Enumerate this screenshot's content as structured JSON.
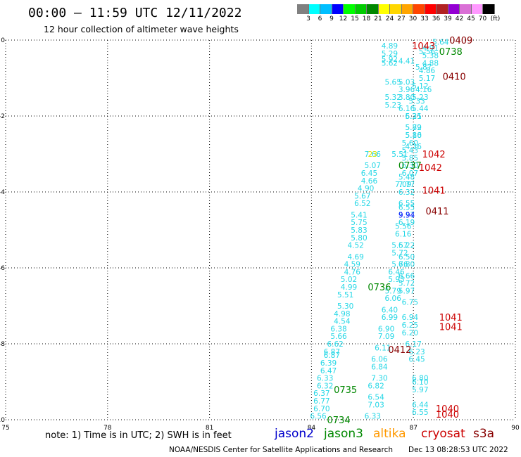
{
  "header": {
    "title": "00:00 – 11:59 UTC 12/11/2022",
    "subtitle": "12 hour collection of altimeter wave heights"
  },
  "colorbar": {
    "unit": "(ft)",
    "bins": [
      {
        "label": "3",
        "color": "#808080"
      },
      {
        "label": "6",
        "color": "#00ffff"
      },
      {
        "label": "9",
        "color": "#00bfff"
      },
      {
        "label": "12",
        "color": "#0000ff"
      },
      {
        "label": "15",
        "color": "#00ff00"
      },
      {
        "label": "18",
        "color": "#00cc00"
      },
      {
        "label": "21",
        "color": "#008800"
      },
      {
        "label": "24",
        "color": "#ffff00"
      },
      {
        "label": "27",
        "color": "#ffd700"
      },
      {
        "label": "30",
        "color": "#ffa500"
      },
      {
        "label": "33",
        "color": "#ff4500"
      },
      {
        "label": "36",
        "color": "#ff0000"
      },
      {
        "label": "39",
        "color": "#b22222"
      },
      {
        "label": "42",
        "color": "#9400d3"
      },
      {
        "label": "45",
        "color": "#da70d6"
      },
      {
        "label": "70",
        "color": "#ff99ff"
      },
      {
        "label": "",
        "color": "#000000"
      }
    ]
  },
  "colors": {
    "cyan": "#25d7e6",
    "jason2": "#0000cc",
    "jason3": "#008800",
    "altika": "#ff9900",
    "cryosat": "#cc0000",
    "s3a": "#880000",
    "yellow": "#e6e600",
    "blue": "#0000ff"
  },
  "chart_data": {
    "type": "scatter",
    "title": "00:00 – 11:59 UTC 12/11/2022",
    "subtitle": "12 hour collection of altimeter wave heights",
    "xlim": [
      75,
      90
    ],
    "ylim": [
      -10,
      0
    ],
    "x_ticks": [
      "75",
      "78",
      "81",
      "84",
      "87",
      "90"
    ],
    "y_ticks": [
      "0",
      "-2",
      "-4",
      "-6",
      "-8",
      "-10"
    ],
    "grid": true,
    "series": [
      {
        "name": "jason2",
        "color_key": "cyan",
        "points": [
          {
            "x": 84.2,
            "y": -9.9,
            "label": "6.56"
          },
          {
            "x": 84.3,
            "y": -9.7,
            "label": "6.70"
          },
          {
            "x": 84.3,
            "y": -9.5,
            "label": "6.77"
          },
          {
            "x": 84.3,
            "y": -9.3,
            "label": "6.37"
          },
          {
            "x": 84.4,
            "y": -9.1,
            "label": "6.32"
          },
          {
            "x": 84.4,
            "y": -8.9,
            "label": "6.33"
          },
          {
            "x": 84.5,
            "y": -8.7,
            "label": "6.47"
          },
          {
            "x": 84.5,
            "y": -8.5,
            "label": "6.39"
          },
          {
            "x": 84.6,
            "y": -8.3,
            "label": "6.87"
          },
          {
            "x": 84.6,
            "y": -8.2,
            "label": "6.87"
          },
          {
            "x": 84.7,
            "y": -8.0,
            "label": "6.62"
          },
          {
            "x": 84.8,
            "y": -7.8,
            "label": "5.66"
          },
          {
            "x": 84.8,
            "y": -7.6,
            "label": "6.38"
          },
          {
            "x": 84.9,
            "y": -7.4,
            "label": "4.54"
          },
          {
            "x": 84.9,
            "y": -7.2,
            "label": "4.98"
          },
          {
            "x": 85.0,
            "y": -7.0,
            "label": "5.30"
          },
          {
            "x": 85.0,
            "y": -6.7,
            "label": "5.51"
          },
          {
            "x": 85.1,
            "y": -6.5,
            "label": "4.99"
          },
          {
            "x": 85.1,
            "y": -6.3,
            "label": "5.02"
          },
          {
            "x": 85.2,
            "y": -6.1,
            "label": "4.76"
          },
          {
            "x": 85.2,
            "y": -5.9,
            "label": "4.59"
          },
          {
            "x": 85.3,
            "y": -5.7,
            "label": "4.69"
          },
          {
            "x": 85.3,
            "y": -5.4,
            "label": "4.52"
          },
          {
            "x": 85.4,
            "y": -5.2,
            "label": "5.80"
          },
          {
            "x": 85.4,
            "y": -5.0,
            "label": "5.83"
          },
          {
            "x": 85.4,
            "y": -4.8,
            "label": "5.75"
          },
          {
            "x": 85.4,
            "y": -4.6,
            "label": "5.41"
          },
          {
            "x": 85.5,
            "y": -4.3,
            "label": "6.52"
          },
          {
            "x": 85.5,
            "y": -4.1,
            "label": "5.67"
          },
          {
            "x": 85.6,
            "y": -3.9,
            "label": "4.90"
          },
          {
            "x": 85.7,
            "y": -3.7,
            "label": "4.66"
          },
          {
            "x": 85.7,
            "y": -3.5,
            "label": "6.45"
          },
          {
            "x": 85.8,
            "y": -3.3,
            "label": "5.07"
          },
          {
            "x": 85.8,
            "y": -3.0,
            "label": "7.66"
          }
        ]
      },
      {
        "name": "jason3",
        "color_key": "cyan",
        "points": [
          {
            "x": 85.8,
            "y": -9.9,
            "label": "6.33"
          },
          {
            "x": 85.9,
            "y": -9.6,
            "label": "7.03"
          },
          {
            "x": 85.9,
            "y": -9.4,
            "label": "6.54"
          },
          {
            "x": 85.9,
            "y": -9.1,
            "label": "6.82"
          },
          {
            "x": 86.0,
            "y": -8.9,
            "label": "7.30"
          },
          {
            "x": 86.0,
            "y": -8.6,
            "label": "6.84"
          },
          {
            "x": 86.0,
            "y": -8.4,
            "label": "6.06"
          },
          {
            "x": 86.1,
            "y": -8.1,
            "label": "6.11"
          },
          {
            "x": 86.2,
            "y": -7.8,
            "label": "7.09"
          },
          {
            "x": 86.2,
            "y": -7.6,
            "label": "6.90"
          },
          {
            "x": 86.3,
            "y": -7.3,
            "label": "6.99"
          },
          {
            "x": 86.3,
            "y": -7.1,
            "label": "6.40"
          },
          {
            "x": 86.4,
            "y": -6.8,
            "label": "6.06"
          },
          {
            "x": 86.4,
            "y": -6.6,
            "label": "5.79"
          },
          {
            "x": 86.5,
            "y": -6.3,
            "label": "5.93"
          },
          {
            "x": 86.5,
            "y": -6.1,
            "label": "6.46"
          },
          {
            "x": 86.6,
            "y": -5.9,
            "label": "5.76"
          },
          {
            "x": 86.6,
            "y": -5.6,
            "label": "5.72"
          },
          {
            "x": 86.6,
            "y": -5.4,
            "label": "5.57"
          },
          {
            "x": 86.7,
            "y": -5.1,
            "label": "6.16"
          },
          {
            "x": 86.7,
            "y": -4.9,
            "label": "5.56"
          },
          {
            "x": 86.8,
            "y": -4.6,
            "label": "5.57"
          },
          {
            "x": 86.8,
            "y": -4.3,
            "label": "6.55"
          },
          {
            "x": 86.8,
            "y": -3.8,
            "label": "7.77"
          },
          {
            "x": 86.8,
            "y": -3.6,
            "label": "5.48"
          },
          {
            "x": 86.9,
            "y": -3.1,
            "label": "5.85"
          },
          {
            "x": 86.9,
            "y": -2.9,
            "label": "5.43"
          },
          {
            "x": 86.9,
            "y": -2.7,
            "label": "5.60"
          },
          {
            "x": 87.0,
            "y": -2.5,
            "label": "5.86"
          },
          {
            "x": 87.0,
            "y": -2.3,
            "label": "5.89"
          },
          {
            "x": 87.0,
            "y": -2.0,
            "label": "6.35"
          },
          {
            "x": 87.1,
            "y": -1.6,
            "label": "5.33"
          },
          {
            "x": 87.2,
            "y": -1.2,
            "label": "5.12"
          },
          {
            "x": 87.3,
            "y": -0.7,
            "label": "5.87"
          },
          {
            "x": 87.4,
            "y": -0.3,
            "label": "5.56"
          }
        ]
      },
      {
        "name": "altika",
        "color_key": "cyan",
        "points": [
          {
            "x": 86.3,
            "y": -0.15,
            "label": "4.89"
          },
          {
            "x": 86.3,
            "y": -0.35,
            "label": "5.29"
          },
          {
            "x": 86.3,
            "y": -0.5,
            "label": "5.92"
          },
          {
            "x": 86.3,
            "y": -0.6,
            "label": "5.62"
          },
          {
            "x": 86.4,
            "y": -1.1,
            "label": "5.65"
          },
          {
            "x": 86.4,
            "y": -1.5,
            "label": "5.32"
          },
          {
            "x": 86.4,
            "y": -1.7,
            "label": "5.23"
          }
        ]
      },
      {
        "name": "cryosat",
        "color_key": "cyan",
        "points": [
          {
            "x": 87.2,
            "y": -9.8,
            "label": "6.55"
          },
          {
            "x": 87.2,
            "y": -9.6,
            "label": "6.44"
          },
          {
            "x": 87.2,
            "y": -9.2,
            "label": "5.97"
          },
          {
            "x": 87.2,
            "y": -9.0,
            "label": "6.10"
          },
          {
            "x": 87.2,
            "y": -8.9,
            "label": "6.80"
          },
          {
            "x": 87.1,
            "y": -8.4,
            "label": "6.45"
          },
          {
            "x": 87.1,
            "y": -8.2,
            "label": "6.23"
          },
          {
            "x": 87.0,
            "y": -8.0,
            "label": "6.17"
          },
          {
            "x": 86.9,
            "y": -7.7,
            "label": "6.20"
          },
          {
            "x": 86.9,
            "y": -7.5,
            "label": "6.25"
          },
          {
            "x": 86.9,
            "y": -7.3,
            "label": "6.94"
          },
          {
            "x": 86.9,
            "y": -6.9,
            "label": "6.75"
          },
          {
            "x": 86.8,
            "y": -6.6,
            "label": "5.97"
          },
          {
            "x": 86.8,
            "y": -6.4,
            "label": "5.72"
          },
          {
            "x": 86.8,
            "y": -6.2,
            "label": "6.66"
          },
          {
            "x": 86.8,
            "y": -5.9,
            "label": "6.80"
          },
          {
            "x": 86.8,
            "y": -5.7,
            "label": "6.50"
          },
          {
            "x": 86.8,
            "y": -5.4,
            "label": "6.22"
          },
          {
            "x": 86.8,
            "y": -4.8,
            "label": "6.19"
          },
          {
            "x": 86.8,
            "y": -4.4,
            "label": "6.55"
          },
          {
            "x": 86.8,
            "y": -4.0,
            "label": "6.32"
          },
          {
            "x": 86.9,
            "y": -3.5,
            "label": "6.07"
          },
          {
            "x": 86.9,
            "y": -3.3,
            "label": "6.30"
          },
          {
            "x": 87.0,
            "y": -2.8,
            "label": "4.36"
          },
          {
            "x": 87.0,
            "y": -2.5,
            "label": "5.10"
          },
          {
            "x": 87.0,
            "y": -2.3,
            "label": "5.72"
          },
          {
            "x": 87.0,
            "y": -2.0,
            "label": "5.21"
          },
          {
            "x": 87.2,
            "y": -1.8,
            "label": "5.44"
          },
          {
            "x": 87.2,
            "y": -1.5,
            "label": "5.23"
          },
          {
            "x": 87.3,
            "y": -1.3,
            "label": "4.16"
          },
          {
            "x": 87.4,
            "y": -1.0,
            "label": "5.17"
          },
          {
            "x": 87.4,
            "y": -0.8,
            "label": "4.86"
          },
          {
            "x": 87.5,
            "y": -0.6,
            "label": "4.88"
          },
          {
            "x": 87.5,
            "y": -0.4,
            "label": "5.38"
          },
          {
            "x": 87.5,
            "y": -0.2,
            "label": "4.91"
          },
          {
            "x": 87.8,
            "y": -0.05,
            "label": "5.64"
          }
        ]
      },
      {
        "name": "s3a",
        "color_key": "cyan",
        "points": [
          {
            "x": 86.8,
            "y": -0.55,
            "label": "4.41"
          },
          {
            "x": 86.8,
            "y": -1.1,
            "label": "5.03"
          },
          {
            "x": 86.8,
            "y": -1.3,
            "label": "3.96"
          },
          {
            "x": 86.8,
            "y": -1.5,
            "label": "3.80"
          },
          {
            "x": 86.8,
            "y": -1.8,
            "label": "6.16"
          },
          {
            "x": 86.6,
            "y": -3.0,
            "label": "5.51"
          },
          {
            "x": 86.7,
            "y": -3.8,
            "label": "7.09"
          }
        ]
      },
      {
        "name": "other",
        "color_key": "yellow",
        "points": [
          {
            "x": 85.8,
            "y": -3.0,
            "label": "23"
          }
        ]
      },
      {
        "name": "other-blue",
        "color_key": "blue",
        "points": [
          {
            "x": 86.8,
            "y": -4.6,
            "label": "9.94"
          }
        ]
      }
    ],
    "pass_labels": [
      {
        "text": "0409",
        "color_key": "s3a",
        "x": 88.4,
        "y": 0.0
      },
      {
        "text": "1043",
        "color_key": "cryosat",
        "x": 87.3,
        "y": -0.15
      },
      {
        "text": "0738",
        "color_key": "jason3",
        "x": 88.1,
        "y": -0.3
      },
      {
        "text": "0410",
        "color_key": "s3a",
        "x": 88.2,
        "y": -0.95
      },
      {
        "text": "1042",
        "color_key": "cryosat",
        "x": 87.6,
        "y": -3.0
      },
      {
        "text": "0737",
        "color_key": "jason3",
        "x": 86.9,
        "y": -3.3
      },
      {
        "text": "1042",
        "color_key": "cryosat",
        "x": 87.5,
        "y": -3.35
      },
      {
        "text": "1041",
        "color_key": "cryosat",
        "x": 87.6,
        "y": -3.95
      },
      {
        "text": "0411",
        "color_key": "s3a",
        "x": 87.7,
        "y": -4.5
      },
      {
        "text": "0736",
        "color_key": "jason3",
        "x": 86.0,
        "y": -6.5
      },
      {
        "text": "1041",
        "color_key": "cryosat",
        "x": 88.1,
        "y": -7.3
      },
      {
        "text": "1041",
        "color_key": "cryosat",
        "x": 88.1,
        "y": -7.55
      },
      {
        "text": "0412",
        "color_key": "s3a",
        "x": 86.6,
        "y": -8.15
      },
      {
        "text": "0735",
        "color_key": "jason3",
        "x": 85.0,
        "y": -9.2
      },
      {
        "text": "1040",
        "color_key": "cryosat",
        "x": 88.0,
        "y": -9.7
      },
      {
        "text": "1040",
        "color_key": "cryosat",
        "x": 88.0,
        "y": -9.85
      },
      {
        "text": "0734",
        "color_key": "jason3",
        "x": 84.8,
        "y": -10.0
      }
    ]
  },
  "footer": {
    "note": "note: 1) Time is in UTC; 2) SWH is in feet",
    "legend": [
      {
        "name": "jason2",
        "color_key": "jason2"
      },
      {
        "name": "jason3",
        "color_key": "jason3"
      },
      {
        "name": "altika",
        "color_key": "altika"
      },
      {
        "name": "cryosat",
        "color_key": "cryosat"
      },
      {
        "name": "s3a",
        "color_key": "s3a"
      }
    ],
    "credit": "NOAA/NESDIS Center for Satellite Applications and Research",
    "timestamp": "Dec 13 08:28:53 UTC 2022"
  }
}
